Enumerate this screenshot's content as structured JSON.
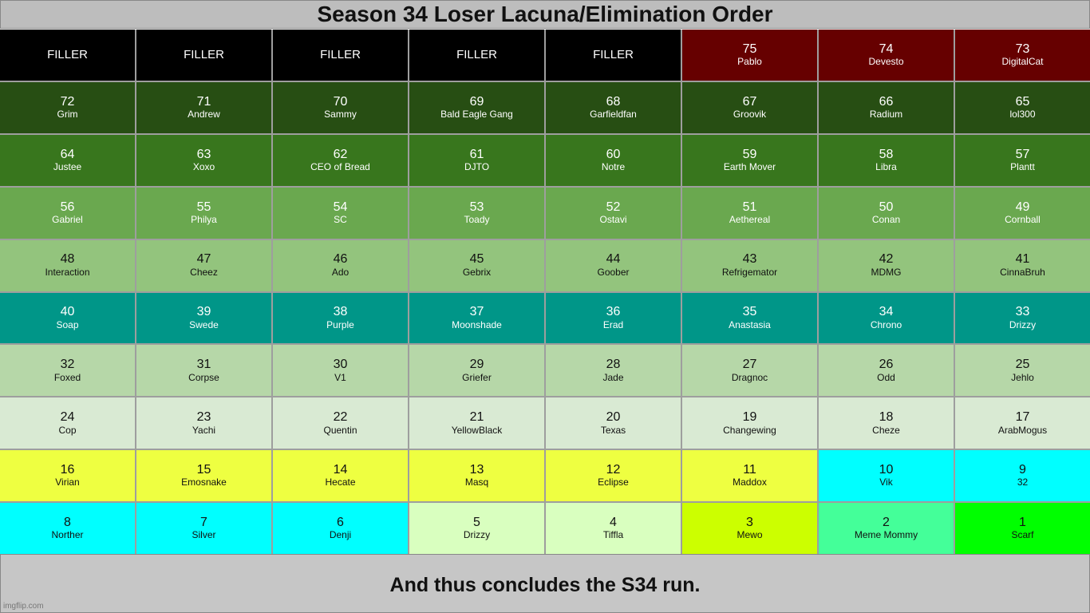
{
  "title": "Season 34 Loser Lacuna/Elimination Order",
  "footer": "And thus concludes the S34 run.",
  "watermark": "imgflip.com",
  "cells": [
    {
      "num": "FILLER",
      "name": "",
      "bg": "#000000",
      "fg": "#ffffff"
    },
    {
      "num": "FILLER",
      "name": "",
      "bg": "#000000",
      "fg": "#ffffff"
    },
    {
      "num": "FILLER",
      "name": "",
      "bg": "#000000",
      "fg": "#ffffff"
    },
    {
      "num": "FILLER",
      "name": "",
      "bg": "#000000",
      "fg": "#ffffff"
    },
    {
      "num": "FILLER",
      "name": "",
      "bg": "#000000",
      "fg": "#ffffff"
    },
    {
      "num": "75",
      "name": "Pablo",
      "bg": "#660000",
      "fg": "#ffffff"
    },
    {
      "num": "74",
      "name": "Devesto",
      "bg": "#660000",
      "fg": "#ffffff"
    },
    {
      "num": "73",
      "name": "DigitalCat",
      "bg": "#660000",
      "fg": "#ffffff"
    },
    {
      "num": "72",
      "name": "Grim",
      "bg": "#274e13",
      "fg": "#ffffff"
    },
    {
      "num": "71",
      "name": "Andrew",
      "bg": "#274e13",
      "fg": "#ffffff"
    },
    {
      "num": "70",
      "name": "Sammy",
      "bg": "#274e13",
      "fg": "#ffffff"
    },
    {
      "num": "69",
      "name": "Bald Eagle Gang",
      "bg": "#274e13",
      "fg": "#ffffff"
    },
    {
      "num": "68",
      "name": "Garfieldfan",
      "bg": "#274e13",
      "fg": "#ffffff"
    },
    {
      "num": "67",
      "name": "Groovik",
      "bg": "#274e13",
      "fg": "#ffffff"
    },
    {
      "num": "66",
      "name": "Radium",
      "bg": "#274e13",
      "fg": "#ffffff"
    },
    {
      "num": "65",
      "name": "lol300",
      "bg": "#274e13",
      "fg": "#ffffff"
    },
    {
      "num": "64",
      "name": "Justee",
      "bg": "#38761d",
      "fg": "#ffffff"
    },
    {
      "num": "63",
      "name": "Xoxo",
      "bg": "#38761d",
      "fg": "#ffffff"
    },
    {
      "num": "62",
      "name": "CEO of Bread",
      "bg": "#38761d",
      "fg": "#ffffff"
    },
    {
      "num": "61",
      "name": "DJTO",
      "bg": "#38761d",
      "fg": "#ffffff"
    },
    {
      "num": "60",
      "name": "Notre",
      "bg": "#38761d",
      "fg": "#ffffff"
    },
    {
      "num": "59",
      "name": "Earth Mover",
      "bg": "#38761d",
      "fg": "#ffffff"
    },
    {
      "num": "58",
      "name": "Libra",
      "bg": "#38761d",
      "fg": "#ffffff"
    },
    {
      "num": "57",
      "name": "Plantt",
      "bg": "#38761d",
      "fg": "#ffffff"
    },
    {
      "num": "56",
      "name": "Gabriel",
      "bg": "#6aa84f",
      "fg": "#ffffff"
    },
    {
      "num": "55",
      "name": "Philya",
      "bg": "#6aa84f",
      "fg": "#ffffff"
    },
    {
      "num": "54",
      "name": "SC",
      "bg": "#6aa84f",
      "fg": "#ffffff"
    },
    {
      "num": "53",
      "name": "Toady",
      "bg": "#6aa84f",
      "fg": "#ffffff"
    },
    {
      "num": "52",
      "name": "Ostavi",
      "bg": "#6aa84f",
      "fg": "#ffffff"
    },
    {
      "num": "51",
      "name": "Aethereal",
      "bg": "#6aa84f",
      "fg": "#ffffff"
    },
    {
      "num": "50",
      "name": "Conan",
      "bg": "#6aa84f",
      "fg": "#ffffff"
    },
    {
      "num": "49",
      "name": "Cornball",
      "bg": "#6aa84f",
      "fg": "#ffffff"
    },
    {
      "num": "48",
      "name": "Interaction",
      "bg": "#93c47d",
      "fg": "#111111"
    },
    {
      "num": "47",
      "name": "Cheez",
      "bg": "#93c47d",
      "fg": "#111111"
    },
    {
      "num": "46",
      "name": "Ado",
      "bg": "#93c47d",
      "fg": "#111111"
    },
    {
      "num": "45",
      "name": "Gebrix",
      "bg": "#93c47d",
      "fg": "#111111"
    },
    {
      "num": "44",
      "name": "Goober",
      "bg": "#93c47d",
      "fg": "#111111"
    },
    {
      "num": "43",
      "name": "Refrigemator",
      "bg": "#93c47d",
      "fg": "#111111"
    },
    {
      "num": "42",
      "name": "MDMG",
      "bg": "#93c47d",
      "fg": "#111111"
    },
    {
      "num": "41",
      "name": "CinnaBruh",
      "bg": "#93c47d",
      "fg": "#111111"
    },
    {
      "num": "40",
      "name": "Soap",
      "bg": "#009688",
      "fg": "#ffffff"
    },
    {
      "num": "39",
      "name": "Swede",
      "bg": "#009688",
      "fg": "#ffffff"
    },
    {
      "num": "38",
      "name": "Purple",
      "bg": "#009688",
      "fg": "#ffffff"
    },
    {
      "num": "37",
      "name": "Moonshade",
      "bg": "#009688",
      "fg": "#ffffff"
    },
    {
      "num": "36",
      "name": "Erad",
      "bg": "#009688",
      "fg": "#ffffff"
    },
    {
      "num": "35",
      "name": "Anastasia",
      "bg": "#009688",
      "fg": "#ffffff"
    },
    {
      "num": "34",
      "name": "Chrono",
      "bg": "#009688",
      "fg": "#ffffff"
    },
    {
      "num": "33",
      "name": "Drizzy",
      "bg": "#009688",
      "fg": "#ffffff"
    },
    {
      "num": "32",
      "name": "Foxed",
      "bg": "#b6d7a8",
      "fg": "#111111"
    },
    {
      "num": "31",
      "name": "Corpse",
      "bg": "#b6d7a8",
      "fg": "#111111"
    },
    {
      "num": "30",
      "name": "V1",
      "bg": "#b6d7a8",
      "fg": "#111111"
    },
    {
      "num": "29",
      "name": "Griefer",
      "bg": "#b6d7a8",
      "fg": "#111111"
    },
    {
      "num": "28",
      "name": "Jade",
      "bg": "#b6d7a8",
      "fg": "#111111"
    },
    {
      "num": "27",
      "name": "Dragnoc",
      "bg": "#b6d7a8",
      "fg": "#111111"
    },
    {
      "num": "26",
      "name": "Odd",
      "bg": "#b6d7a8",
      "fg": "#111111"
    },
    {
      "num": "25",
      "name": "Jehlo",
      "bg": "#b6d7a8",
      "fg": "#111111"
    },
    {
      "num": "24",
      "name": "Cop",
      "bg": "#d9ead3",
      "fg": "#111111"
    },
    {
      "num": "23",
      "name": "Yachi",
      "bg": "#d9ead3",
      "fg": "#111111"
    },
    {
      "num": "22",
      "name": "Quentin",
      "bg": "#d9ead3",
      "fg": "#111111"
    },
    {
      "num": "21",
      "name": "YellowBlack",
      "bg": "#d9ead3",
      "fg": "#111111"
    },
    {
      "num": "20",
      "name": "Texas",
      "bg": "#d9ead3",
      "fg": "#111111"
    },
    {
      "num": "19",
      "name": "Changewing",
      "bg": "#d9ead3",
      "fg": "#111111"
    },
    {
      "num": "18",
      "name": "Cheze",
      "bg": "#d9ead3",
      "fg": "#111111"
    },
    {
      "num": "17",
      "name": "ArabMogus",
      "bg": "#d9ead3",
      "fg": "#111111"
    },
    {
      "num": "16",
      "name": "Virian",
      "bg": "#eeff41",
      "fg": "#111111"
    },
    {
      "num": "15",
      "name": "Emosnake",
      "bg": "#eeff41",
      "fg": "#111111"
    },
    {
      "num": "14",
      "name": "Hecate",
      "bg": "#eeff41",
      "fg": "#111111"
    },
    {
      "num": "13",
      "name": "Masq",
      "bg": "#eeff41",
      "fg": "#111111"
    },
    {
      "num": "12",
      "name": "Eclipse",
      "bg": "#eeff41",
      "fg": "#111111"
    },
    {
      "num": "11",
      "name": "Maddox",
      "bg": "#eeff41",
      "fg": "#111111"
    },
    {
      "num": "10",
      "name": "Vik",
      "bg": "#00ffff",
      "fg": "#111111"
    },
    {
      "num": "9",
      "name": "32",
      "bg": "#00ffff",
      "fg": "#111111"
    },
    {
      "num": "8",
      "name": "Norther",
      "bg": "#00ffff",
      "fg": "#111111"
    },
    {
      "num": "7",
      "name": "Silver",
      "bg": "#00ffff",
      "fg": "#111111"
    },
    {
      "num": "6",
      "name": "Denji",
      "bg": "#00ffff",
      "fg": "#111111"
    },
    {
      "num": "5",
      "name": "Drizzy",
      "bg": "#d9ffbf",
      "fg": "#111111"
    },
    {
      "num": "4",
      "name": "Tiffla",
      "bg": "#d9ffbf",
      "fg": "#111111"
    },
    {
      "num": "3",
      "name": "Mewo",
      "bg": "#ccff00",
      "fg": "#111111"
    },
    {
      "num": "2",
      "name": "Meme Mommy",
      "bg": "#44ff99",
      "fg": "#111111"
    },
    {
      "num": "1",
      "name": "Scarf",
      "bg": "#00ff00",
      "fg": "#111111"
    }
  ]
}
